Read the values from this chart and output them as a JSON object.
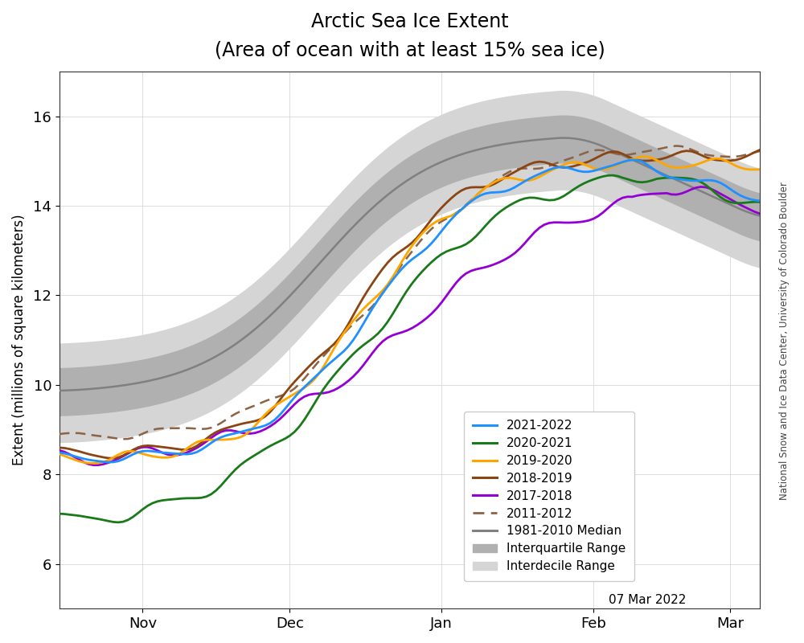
{
  "title_line1": "Arctic Sea Ice Extent",
  "title_line2": "(Area of ocean with at least 15% sea ice)",
  "ylabel": "Extent (millions of square kilometers)",
  "watermark": "National Snow and Ice Data Center, University of Colorado Boulder",
  "date_label": "07 Mar 2022",
  "ylim": [
    5.0,
    17.0
  ],
  "yticks": [
    6,
    8,
    10,
    12,
    14,
    16
  ],
  "colors": {
    "2021-2022": "#1E90FF",
    "2020-2021": "#1a7a1a",
    "2019-2020": "#FFA500",
    "2018-2019": "#8B4513",
    "2017-2018": "#9400D3",
    "2011-2012": "#8B6345",
    "median": "#808080",
    "iqr": "#b0b0b0",
    "idr": "#d5d5d5"
  }
}
